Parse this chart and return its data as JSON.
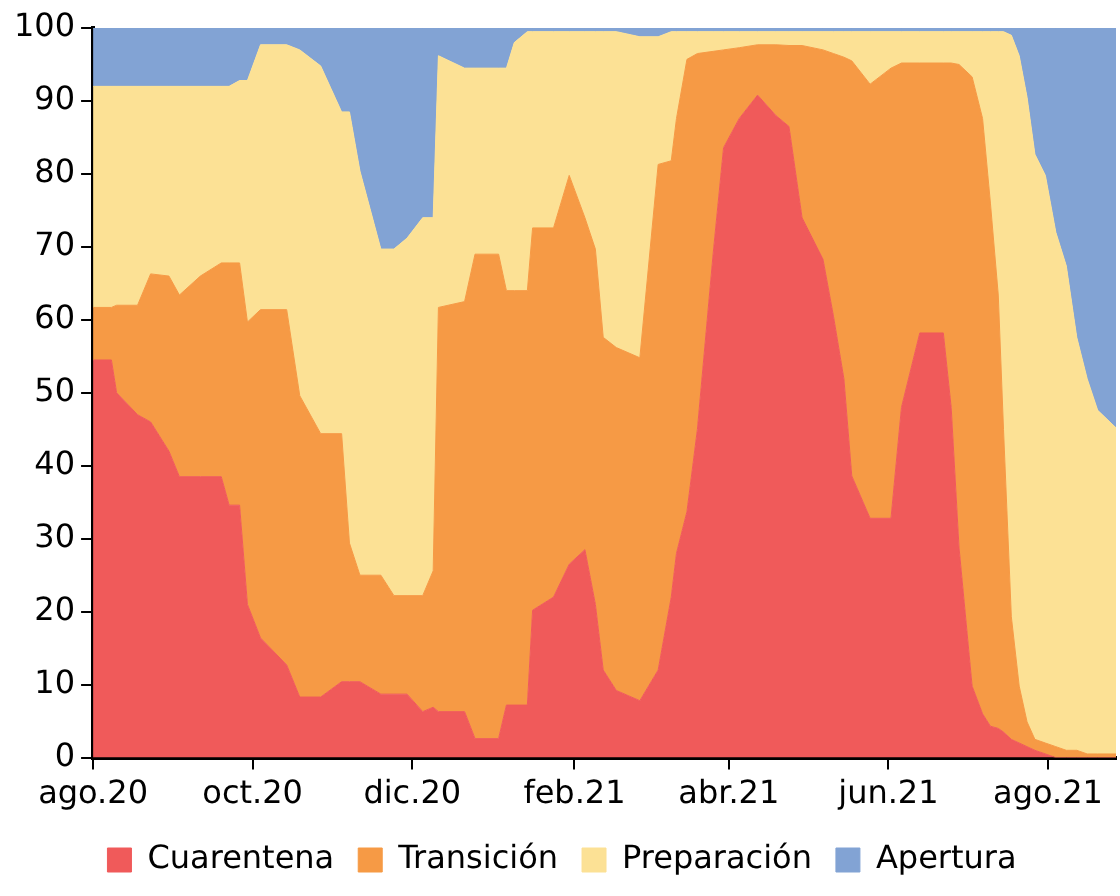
{
  "chart_data": {
    "type": "area",
    "stacked": true,
    "legend": "bottom",
    "x": [
      "2020-08-01",
      "2020-08-08",
      "2020-08-10",
      "2020-08-18",
      "2020-08-23",
      "2020-08-30",
      "2020-09-03",
      "2020-09-11",
      "2020-09-19",
      "2020-09-22",
      "2020-09-26",
      "2020-09-29",
      "2020-10-04",
      "2020-10-14",
      "2020-10-19",
      "2020-10-27",
      "2020-11-04",
      "2020-11-07",
      "2020-11-11",
      "2020-11-19",
      "2020-11-24",
      "2020-11-29",
      "2020-12-05",
      "2020-12-09",
      "2020-12-11",
      "2020-12-21",
      "2020-12-25",
      "2021-01-03",
      "2021-01-06",
      "2021-01-09",
      "2021-01-14",
      "2021-01-16",
      "2021-01-24",
      "2021-01-30",
      "2021-02-05",
      "2021-02-09",
      "2021-02-12",
      "2021-02-17",
      "2021-02-26",
      "2021-03-05",
      "2021-03-10",
      "2021-03-12",
      "2021-03-16",
      "2021-03-20",
      "2021-03-26",
      "2021-03-30",
      "2021-04-05",
      "2021-04-12",
      "2021-04-19",
      "2021-04-24",
      "2021-04-29",
      "2021-05-07",
      "2021-05-11",
      "2021-05-15",
      "2021-05-18",
      "2021-05-25",
      "2021-06-02",
      "2021-06-06",
      "2021-06-13",
      "2021-06-22",
      "2021-06-25",
      "2021-06-28",
      "2021-07-03",
      "2021-07-07",
      "2021-07-10",
      "2021-07-13",
      "2021-07-15",
      "2021-07-18",
      "2021-07-21",
      "2021-07-24",
      "2021-07-27",
      "2021-07-31",
      "2021-08-04",
      "2021-08-08",
      "2021-08-12",
      "2021-08-16",
      "2021-08-20",
      "2021-08-27"
    ],
    "series": [
      {
        "name": "Cuarentena",
        "color": "#f05a5a",
        "values": [
          54.5,
          54.5,
          50,
          47,
          46,
          42,
          38.5,
          38.5,
          38.5,
          34.6,
          34.6,
          21,
          16.4,
          12.7,
          8.3,
          8.3,
          10.4,
          10.4,
          10.4,
          8.7,
          8.7,
          8.7,
          6.3,
          6.9,
          6.3,
          6.3,
          2.6,
          2.6,
          7.2,
          7.2,
          7.2,
          20.2,
          22,
          26.5,
          28.5,
          21,
          12,
          9.2,
          7.8,
          12,
          22,
          28,
          33.7,
          45,
          69,
          83.6,
          87.6,
          90.8,
          88,
          86.5,
          74,
          68.3,
          60.5,
          51.9,
          38.6,
          32.8,
          32.8,
          48,
          58.2,
          58.2,
          48,
          28.8,
          9.8,
          6,
          4.3,
          4,
          3.5,
          2.5,
          2,
          1.5,
          1,
          0.5,
          0,
          0,
          0,
          0,
          0,
          0
        ]
      },
      {
        "name": "Transición",
        "color": "#f69a45",
        "values": [
          7.2,
          7.2,
          12,
          15,
          20.3,
          24,
          24.9,
          27.5,
          29.3,
          33.2,
          33.2,
          38.7,
          45,
          48.7,
          41.3,
          36.1,
          34,
          19,
          14.6,
          16.3,
          13.5,
          13.5,
          15.9,
          18.7,
          55.4,
          56.2,
          66.4,
          66.4,
          56.8,
          56.8,
          56.8,
          52.4,
          50.6,
          53.3,
          45.5,
          48.7,
          45.6,
          47,
          47,
          69.3,
          59.8,
          59.6,
          62,
          51.5,
          27.8,
          13.4,
          9.7,
          6.9,
          9.7,
          11.1,
          23.6,
          28.7,
          36,
          44.1,
          56.9,
          59.5,
          61.7,
          47.2,
          37,
          37,
          47.2,
          66.2,
          83.5,
          81.6,
          71.7,
          59.4,
          41.5,
          16.8,
          7.8,
          3.4,
          1.5,
          1.5,
          1.5,
          1,
          1,
          0.5,
          0.5,
          0.5
        ]
      },
      {
        "name": "Preparación",
        "color": "#fce195",
        "values": [
          30.3,
          30.3,
          30,
          30,
          25.7,
          26,
          28.6,
          26,
          24.2,
          24.2,
          25,
          33.1,
          36.3,
          36.3,
          47.4,
          50.4,
          44.1,
          59.1,
          55.4,
          44.7,
          47.5,
          49,
          51.8,
          48.4,
          34.5,
          32,
          25.5,
          25.5,
          30.5,
          34,
          35.5,
          26.9,
          26.9,
          19.7,
          25.5,
          29.8,
          41.9,
          43.3,
          44,
          17.5,
          17.7,
          11.9,
          3.8,
          3,
          2.7,
          2.5,
          2.2,
          1.8,
          1.8,
          1.9,
          1.9,
          2.5,
          3,
          3.5,
          4,
          7.2,
          5,
          4.3,
          4.3,
          4.3,
          4.3,
          4.5,
          6.2,
          11.9,
          23.5,
          36.1,
          54.5,
          79.7,
          86.4,
          85.6,
          80.2,
          77.8,
          70.5,
          66.4,
          56.6,
          51.4,
          47.1,
          44.7
        ]
      },
      {
        "name": "Apertura",
        "color": "#82a3d4",
        "values": [
          8,
          8,
          8,
          8,
          8,
          8,
          8,
          8,
          8,
          8,
          7.2,
          7.2,
          2.3,
          2.3,
          3,
          5.2,
          11.5,
          11.5,
          19.6,
          30.3,
          30.3,
          28.8,
          26,
          26,
          3.8,
          5.5,
          5.5,
          5.5,
          5.5,
          2,
          0.5,
          0.5,
          0.5,
          0.5,
          0.5,
          0.5,
          0.5,
          0.5,
          1.2,
          1.2,
          0.5,
          0.5,
          0.5,
          0.5,
          0.5,
          0.5,
          0.5,
          0.5,
          0.5,
          0.5,
          0.5,
          0.5,
          0.5,
          0.5,
          0.5,
          0.5,
          0.5,
          0.5,
          0.5,
          0.5,
          0.5,
          0.5,
          0.5,
          0.5,
          0.5,
          0.5,
          0.5,
          1,
          3.8,
          9.5,
          17.3,
          20.2,
          28,
          32.6,
          42.4,
          48.1,
          52.4,
          54.8
        ]
      }
    ],
    "xlim": [
      "2020-08-01",
      "2021-08-27"
    ],
    "xticks": [
      {
        "value": "2020-08-01",
        "label": "ago.20"
      },
      {
        "value": "2020-10-01",
        "label": "oct.20"
      },
      {
        "value": "2020-12-01",
        "label": "dic.20"
      },
      {
        "value": "2021-02-01",
        "label": "feb.21"
      },
      {
        "value": "2021-04-01",
        "label": "abr.21"
      },
      {
        "value": "2021-06-01",
        "label": "jun.21"
      },
      {
        "value": "2021-08-01",
        "label": "ago.21"
      }
    ],
    "ylim": [
      0,
      100
    ],
    "yticks": [
      0,
      10,
      20,
      30,
      40,
      50,
      60,
      70,
      80,
      90,
      100
    ]
  }
}
